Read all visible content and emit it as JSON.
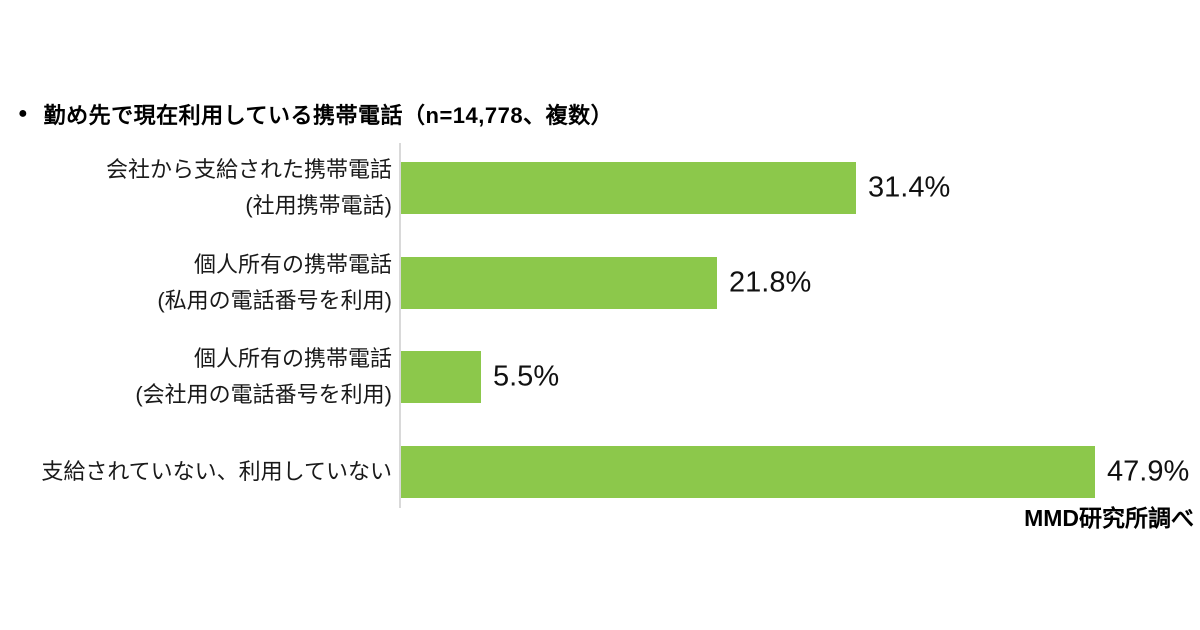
{
  "title": {
    "bullet": "●",
    "text": "勤め先で現在利用している携帯電話（n=14,778、複数）"
  },
  "source_note": "MMD研究所調べ",
  "chart_data": {
    "type": "bar",
    "orientation": "horizontal",
    "title": "勤め先で現在利用している携帯電話（n=14,778、複数）",
    "sample_note": "n=14,778、複数",
    "unit": "%",
    "categories": [
      "会社から支給された携帯電話\n(社用携帯電話)",
      "個人所有の携帯電話\n(私用の電話番号を利用)",
      "個人所有の携帯電話\n(会社用の電話番号を利用)",
      "支給されていない、利用していない"
    ],
    "values": [
      31.4,
      21.8,
      5.5,
      47.9
    ],
    "value_labels": [
      "31.4%",
      "21.8%",
      "5.5%",
      "47.9%"
    ],
    "xlim": [
      0,
      55
    ],
    "grid": false,
    "legend_position": "none",
    "bar_color": "#8CC84B",
    "axis_color": "#D9D9D9",
    "source": "MMD研究所調べ"
  }
}
